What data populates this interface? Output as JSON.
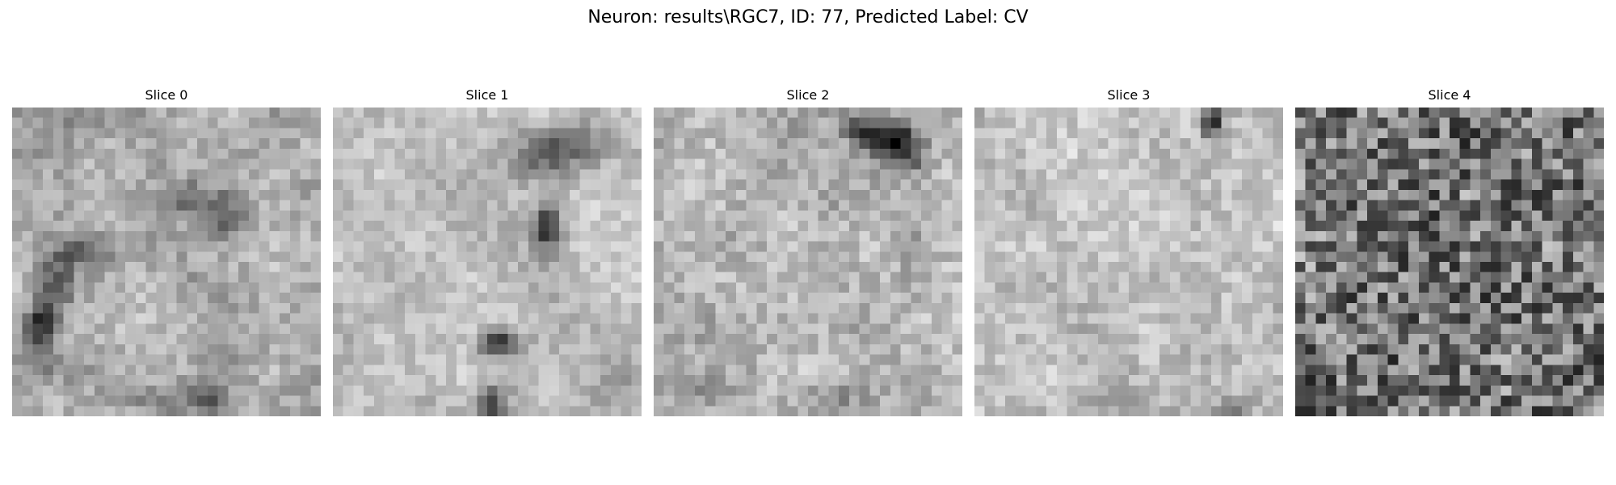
{
  "figure": {
    "title": "Neuron: results\\RGC7, ID: 77, Predicted Label: CV"
  },
  "panels": [
    {
      "title": "Slice 0",
      "colormap": "gray"
    },
    {
      "title": "Slice 1",
      "colormap": "gray"
    },
    {
      "title": "Slice 2",
      "colormap": "gray"
    },
    {
      "title": "Slice 3",
      "colormap": "gray"
    },
    {
      "title": "Slice 4",
      "colormap": "gray"
    }
  ]
}
